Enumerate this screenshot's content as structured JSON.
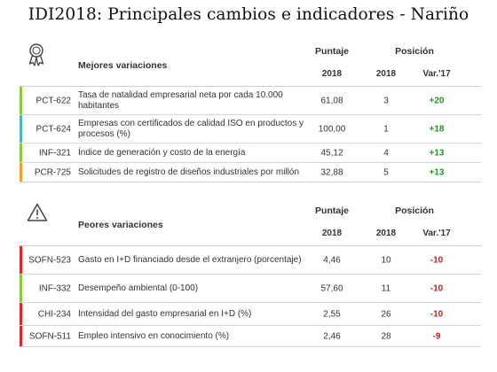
{
  "title": "IDI2018: Principales cambios e indicadores - Nariño",
  "colors": {
    "green": "#8dc63f",
    "teal": "#4fb7c6",
    "orange": "#f0a030",
    "red": "#d7282f",
    "var_up": "#2e8b2e",
    "var_down": "#c62020"
  },
  "best": {
    "icon": "award-ribbon-icon",
    "section_title": "Mejores variaciones",
    "col_puntaje": "Puntaje",
    "col_posicion": "Posición",
    "col_score_year": "2018",
    "col_pos_year": "2018",
    "col_var": "Var.'17",
    "rows": [
      {
        "code": "PCT-622",
        "desc": "Tasa de natalidad empresarial neta por cada 10.000 habitantes",
        "score": "61,08",
        "pos": "3",
        "var": "+20",
        "color": "#8dc63f"
      },
      {
        "code": "PCT-624",
        "desc": "Empresas con certificados de calidad ISO en productos y procesos (%)",
        "score": "100,00",
        "pos": "1",
        "var": "+18",
        "color": "#4fb7c6"
      },
      {
        "code": "INF-321",
        "desc": "Índice de generación y costo de la energía",
        "score": "45,12",
        "pos": "4",
        "var": "+13",
        "color": "#8dc63f"
      },
      {
        "code": "PCR-725",
        "desc": "Solicitudes de registro de diseños industriales por millón",
        "score": "32,88",
        "pos": "5",
        "var": "+13",
        "color": "#f0a030"
      }
    ]
  },
  "worst": {
    "icon": "warning-triangle-icon",
    "section_title": "Peores variaciones",
    "col_puntaje": "Puntaje",
    "col_posicion": "Posición",
    "col_score_year": "2018",
    "col_pos_year": "2018",
    "col_var": "Var.'17",
    "rows": [
      {
        "code": "SOFN-523",
        "desc": "Gasto en I+D financiado desde el extranjero (porcentaje)",
        "score": "4,46",
        "pos": "10",
        "var": "-10",
        "color": "#d7282f"
      },
      {
        "code": "INF-332",
        "desc": "Desempeño ambiental (0-100)",
        "score": "57,60",
        "pos": "11",
        "var": "-10",
        "color": "#8dc63f"
      },
      {
        "code": "CHI-234",
        "desc": "Intensidad del gasto empresarial en I+D (%)",
        "score": "2,55",
        "pos": "26",
        "var": "-10",
        "color": "#d7282f"
      },
      {
        "code": "SOFN-511",
        "desc": "Empleo intensivo en conocimiento (%)",
        "score": "2,46",
        "pos": "28",
        "var": "-9",
        "color": "#d7282f"
      }
    ]
  }
}
